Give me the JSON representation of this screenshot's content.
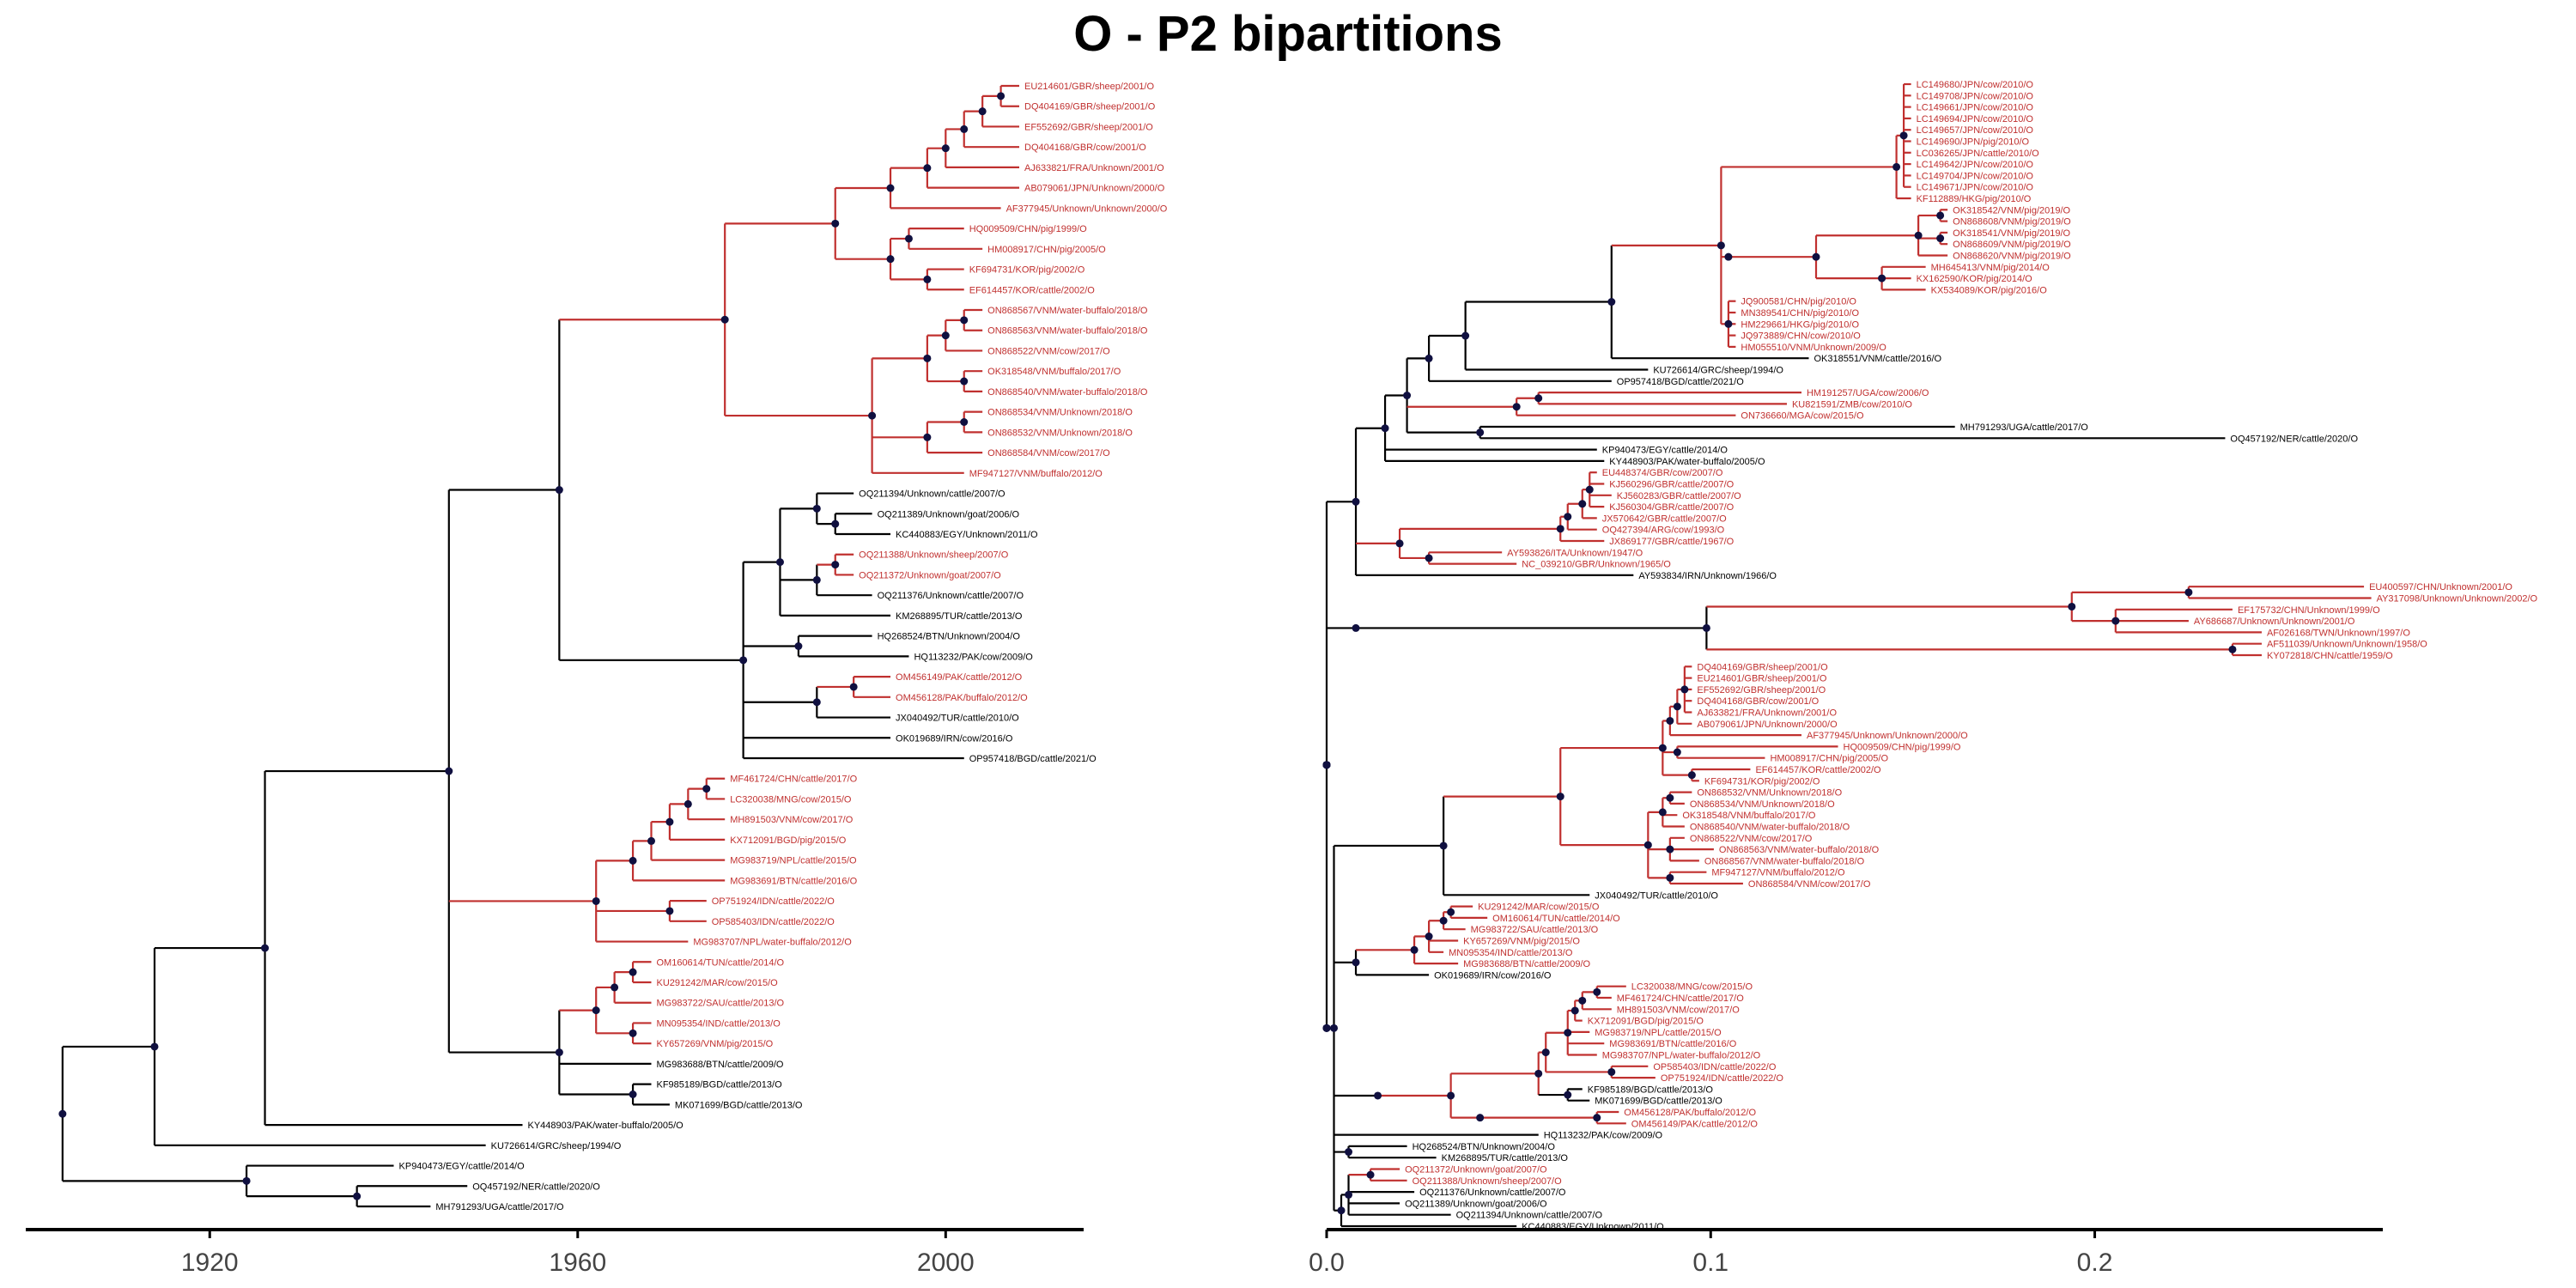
{
  "title": "O - P2 bipartitions",
  "colors": {
    "branch_default": "#000000",
    "branch_highlight": "#c0302f",
    "node": "#101040",
    "label_highlight": "#c0302f",
    "label_default": "#000000"
  },
  "chart_data": [
    {
      "type": "tree",
      "panel": "left",
      "axis": {
        "xlim": [
          1900,
          2015
        ],
        "ticks": [
          1920,
          1960,
          2000
        ]
      },
      "tree": "(((((((((((((EU214601/GBR/sheep/2001/O:1,DQ404169/GBR/sheep/2001/O:1)r:1,EF552692/GBR/sheep/2001/O:2)r:1,DQ404168/GBR/cow/2001/O:3)r:1,AJ633821/FRA/Unknown/2001/O:4)r:1,AB079061/JPN/Unknown/2000/O:5)r:2,AF377945/Unknown/Unknown/2000/O:6)r:3,((HQ009509/CHN/pig/1999/O:3,HM008917/CHN/pig/2005/O:4)r:1,(KF694731/KOR/pig/2002/O:2,EF614457/KOR/cattle/2002/O:2)r:2)r:3)r:6,((((ON868567/VNM/water-buffalo/2018/O:1,ON868563/VNM/water-buffalo/2018/O:1)r:1,ON868522/VNM/cow/2017/O:2)r:1,(OK318548/VNM/buffalo/2017/O:1,ON868540/VNM/water-buffalo/2018/O:1)r:2)r:3,((ON868534/VNM/Unknown/2018/O:1,ON868532/VNM/Unknown/2018/O:1)r:2,ON868584/VNM/cow/2017/O:3)r:3,MF947127/VNM/buffalo/2012/O:5)r:8)r:9,(((OQ211394/Unknown/cattle/2007/O:2,(OQ211389/Unknown/goat/2006/O:2,KC440883/EGY/Unknown/2011/O:3)b:1)b:2,((OQ211388/Unknown/sheep/2007/O:1,OQ211372/Unknown/goat/2007/O:1)r:1,OQ211376/Unknown/cattle/2007/O:3)b:2,KM268895/TUR/cattle/2013/O:6)b:2,(HQ268524/BTN/Unknown/2004/O:4,HQ113232/PAK/cow/2009/O:6)b:3,((OM456149/PAK/cattle/2012/O:2,OM456128/PAK/buffalo/2012/O:2)r:2,JX040492/TUR/cattle/2010/O:4)b:4,OK019689/IRN/cow/2016/O:8,OP957418/BGD/cattle/2021/O:12)b:10)b:6,((((((MF461724/CHN/cattle/2017/O:1,LC320038/MNG/cow/2015/O:1)r:1,MH891503/VNM/cow/2017/O:2)r:1,KX712091/BGD/pig/2015/O:3)r:1,MG983719/NPL/cattle/2015/O:4)r:1,MG983691/BTN/cattle/2016/O:5)r:2,(OP751924/IDN/cattle/2022/O:2,OP585403/IDN/cattle/2022/O:2)r:4,MG983707/NPL/water-buffalo/2012/O:5)r:8,((((OM160614/TUN/cattle/2014/O:1,KU291242/MAR/cow/2015/O:1)r:1,MG983722/SAU/cattle/2013/O:2)r:1,(MN095354/IND/cattle/2013/O:1,KY657269/VNM/pig/2015/O:1)r:2)r:2,MG983688/BTN/cattle/2009/O:5,(KF985189/BGD/cattle/2013/O:1,MK071699/BGD/cattle/2013/O:2)b:4)b:6)b:10,KY448903/PAK/water-buffalo/2005/O:14)b:6,KU726614/GRC/sheep/1994/O:18)b:5,(KP940473/EGY/cattle/2014/O:8,(OQ457192/NER/cattle/2020/O:6,MH791293/UGA/cattle/2017/O:4)b:6)b:10)b:6,AY593834/IRN/Unknown/1966/O:9)b:8,(((((((((((((((LC149694/JPN/cow/2010/O:1,LC149680/JPN/cow/2010/O:1,LC149671/JPN/cow/2010/O:1,LC149661/JPN/cow/2010/O:1,LC149690/JPN/pig/2010/O:1,LC149657/JPN/pig/2010/O:1,LC149704/JPN/cow/2010/O:1,LC149708/JPN/cow/2010/O:1,LC149642/JPN/cow/2010/O:1)r:1,LC036265/JPN/cattle/2010/O:2)r:1,KF112889/HKG/pig/2010/O:3)r:1,(MN389541/CHN/pig/2010/O:1,HM229661/HKG/pig/2010/O:1,JQ900581/CHN/pig/2010/O:1)r:2)r:1,HM055510/VNM/Unknown/2009/O:4)r:1,JQ973889/CHN/cow/2010/O:5)r:10,(((((ON868620/VNM/pig/2019/O:1,ON868609/VNM/pig/2019/O:1)r:1,OK318541/VNM/pig/2019/O:1)r:1,(ON868608/VNM/pig/2019/O:1,OK318542/VNM/pig/2019/O:1)r:1)r:3,MH645413/VNM/pig/2014/O:6)r:4,(KX534089/KOR/pig/2016/O:1,KX162590/KOR/pig/2014/O:1)r:7)r:8,OK318551/VNM/cattle/2016/O:12)b:18,((KU821591/ZMB/cow/2010/O:5,HM191257/UGA/cow/2006/O:4)r:10,ON736660/MGA/cow/2015/O:14)r:18)r:20,((((EU400597/CHN/Unknown/2001/O:10,AY317098/Unknown/Unknown/2002/O:11)r:6,EF175732/CHN/Unknown/1999/O:14)r:6,(AY686687/Unknown/Unknown/2001/O:6,AF026168/TWN/Unknown/1997/O:7)r:10)r:10,(KY072818/CHN/cattle/1959/O:6,AF511039/Unknown/Unknown/1958/O:6)r:14)r:20)b:18,((((((KJ560304/GBR/cattle/2007/O:1,KJ560296/GBR/cattle/2007/O:1)r:1,KJ560283/GBR/cattle/2007/O:2)r:1,EU448374/GBR/cow/2007/O:3)r:2,JX570642/GBR/cattle/2007/O:5)r:12,OQ427394/ARG/cow/1993/O:14)r:10,JX869177/GBR/cattle/1967/O:18,(NC_039210/GBR/Unknown/1965/O:12,AY593826/ITA/Unknown/1947/O:14)r:8)r:6)b:20)b:5;"
    },
    {
      "type": "tree",
      "panel": "right",
      "axis": {
        "xlim": [
          0,
          0.275
        ],
        "ticks": [
          0.0,
          0.1,
          0.2
        ]
      },
      "tree": "((((((((((((((((((LC149680/JPN/cow/2010/O:1,LC149708/JPN/cow/2010/O:1,LC149661/JPN/cow/2010/O:1,LC149694/JPN/cow/2010/O:1,LC149657/JPN/cow/2010/O:1,LC149690/JPN/pig/2010/O:1,LC036265/JPN/cattle/2010/O:1,LC149642/JPN/cow/2010/O:1,LC149704/JPN/cow/2010/O:1,LC149671/JPN/cow/2010/O:1)r:1,KF112889/HKG/pig/2010/O:2)r:24,((((OK318542/VNM/pig/2019/O:1,ON868608/VNM/pig/2019/O:1)r:3,(OK318541/VNM/pig/2019/O:1,ON868609/VNM/pig/2019/O:1)r:3,ON868620/VNM/pig/2019/O:4)r:14,(MH645413/VNM/pig/2014/O:6,KX162590/KOR/pig/2014/O:4,KX534089/KOR/pig/2016/O:6)r:9)r:12)r:1,(JQ900581/CHN/pig/2010/O:1,MN389541/CHN/pig/2010/O:1,HM229661/HKG/pig/2010/O:1,JQ973889/CHN/cow/2010/O:1,HM055510/VNM/Unknown/2009/O:1)r:1)r:15,OK318551/VNM/cattle/2016/O:27)b:20,KU726614/GRC/sheep/1994/O:25)b:5,OP957418/BGD/cattle/2021/O:25)b:3,((HM191257/UGA/cow/2006/O:36,KU821591/ZMB/cow/2010/O:34)r:3,ON736660/MGA/cow/2015/O:30)r:15,(MH791293/UGA/cattle/2017/O:65,OQ457192/NER/cattle/2020/O:102)b:10)b:3,KP940473/EGY/cattle/2014/O:29,KY448903/PAK/water-buffalo/2005/O:30)b:4,(((((EU448374/GBR/cow/2007/O:1,KJ560296/GBR/cattle/2007/O:2,KJ560283/GBR/cattle/2007/O:3,KJ560304/GBR/cattle/2007/O:2)r:1,JX570642/GBR/cattle/2007/O:2)r:2,OQ427394/ARG/cow/1993/O:4)r:1,JX869177/GBR/cattle/1967/O:6)r:22,(AY593826/ITA/Unknown/1947/O:10,NC_039210/GBR/Unknown/1965/O:12)r:4)r:6,AY593834/IRN/Unknown/1966/O:38)b:4,((((EU400597/CHN/Unknown/2001/O:24,AY317098/Unknown/Unknown/2002/O:25)r:16,(EF175732/CHN/Unknown/1999/O:16,AY686687/Unknown/Unknown/2001/O:10,AF026168/TWN/Unknown/1997/O:20)r:6)r:50,(AF511039/Unknown/Unknown/1958/O:4,KY072818/CHN/cattle/1959/O:4)r:72)b:48)b:4,((((((((((DQ404169/GBR/sheep/2001/O:1,EU214601/GBR/sheep/2001/O:1,EF552692/GBR/sheep/2001/O:1,DQ404168/GBR/cow/2001/O:1,AJ633821/FRA/Unknown/2001/O:1)r:1,AB079061/JPN/Unknown/2000/O:2)r:1,AF377945/Unknown/Unknown/2000/O:18)r:1,(HQ009509/CHN/pig/1999/O:22,HM008917/CHN/pig/2005/O:12)r:2,(EF614457/KOR/cattle/2002/O:8,KF694731/KOR/pig/2002/O:1)r:4)r:14,(((ON868532/VNM/Unknown/2018/O:3,ON868534/VNM/Unknown/2018/O:2)r:1,OK318548/VNM/buffalo/2017/O:2,ON868540/VNM/water-buffalo/2018/O:3)r:2,(ON868522/VNM/cow/2017/O:2,ON868563/VNM/water-buffalo/2018/O:6,ON868567/VNM/water-buffalo/2018/O:4)r:3,(MF947127/VNM/buffalo/2012/O:5,ON868584/VNM/cow/2017/O:10)r:3)r:12)r:16,JX040492/TUR/cattle/2010/O:20)b:15,(((((KU291242/MAR/cow/2015/O:3,OM160614/TUN/cattle/2014/O:5)r:1,MG983722/SAU/cattle/2013/O:3)r:2,KY657269/VNM/pig/2015/O:4,MN095354/IND/cattle/2013/O:2)r:2,MG983688/BTN/cattle/2009/O:6)r:8,OK019689/IRN/cow/2016/O:10)b:3,((((((((LC320038/MNG/cow/2015/O:4,MF461724/CHN/cattle/2017/O:2)r:2,MH891503/VNM/cow/2017/O:4)r:1,KX712091/BGD/pig/2015/O:1)r:1,MG983719/NPL/cattle/2015/O:3,MG983691/BTN/cattle/2016/O:5,MG983707/NPL/water-buffalo/2012/O:4)r:3,(OP585403/IDN/cattle/2022/O:5,OP751924/IDN/cattle/2022/O:6)r:9)r:1,(KF985189/BGD/cattle/2013/O:2,MK071699/BGD/cattle/2013/O:3)b:4)r:12,((OM456128/PAK/buffalo/2012/O:3,OM456149/PAK/cattle/2012/O:4)r:16)r:4)r:10)b:6,HQ113232/PAK/cow/2009/O:28,(HQ268524/BTN/Unknown/2004/O:8,KM268895/TUR/cattle/2013/O:12)b:2,(((OQ211372/Unknown/goat/2007/O:4,OQ211388/Unknown/sheep/2007/O:5)r:3,OQ211376/Unknown/cattle/2007/O:9,OQ211389/Unknown/goat/2006/O:7,OQ211394/Unknown/cattle/2007/O:14)b:1,KC440883/EGY/Unknown/2011/O:24)b:1)b:1;"
    }
  ]
}
